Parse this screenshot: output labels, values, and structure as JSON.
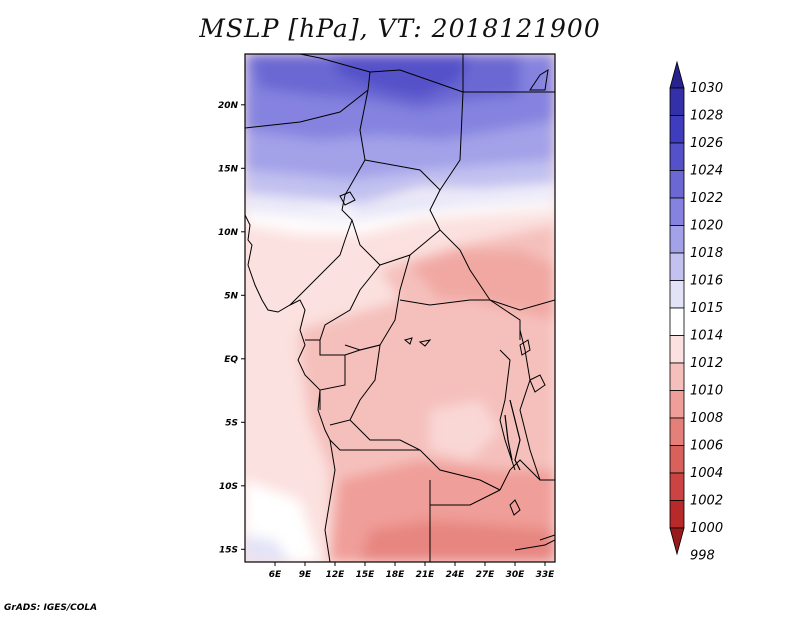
{
  "title": "MSLP [hPa], VT: 2018121900",
  "credit": "GrADS: IGES/COLA",
  "map": {
    "lon_range": [
      3,
      34
    ],
    "lat_range": [
      -16,
      24
    ],
    "lat_ticks": [
      "20N",
      "15N",
      "10N",
      "5N",
      "EQ",
      "5S",
      "10S",
      "15S"
    ],
    "lat_values": [
      20,
      15,
      10,
      5,
      0,
      -5,
      -10,
      -15
    ],
    "lon_ticks": [
      "6E",
      "9E",
      "12E",
      "15E",
      "18E",
      "21E",
      "24E",
      "27E",
      "30E",
      "33E"
    ],
    "lon_values": [
      6,
      9,
      12,
      15,
      18,
      21,
      24,
      27,
      30,
      33
    ]
  },
  "colorbar": {
    "levels": [
      "1030",
      "1028",
      "1026",
      "1024",
      "1022",
      "1020",
      "1018",
      "1016",
      "1015",
      "1014",
      "1012",
      "1010",
      "1008",
      "1006",
      "1004",
      "1002",
      "1000",
      "998"
    ],
    "colors": [
      "#28228c",
      "#3330a8",
      "#3f3cbd",
      "#5451c9",
      "#6b68d3",
      "#8583df",
      "#a3a1e8",
      "#c2c1f0",
      "#e3e3f8",
      "#ffffff",
      "#fbe1df",
      "#f5c0bc",
      "#f09e99",
      "#e57f7a",
      "#d9615c",
      "#cc4343",
      "#b82a2a",
      "#991a1a"
    ]
  }
}
